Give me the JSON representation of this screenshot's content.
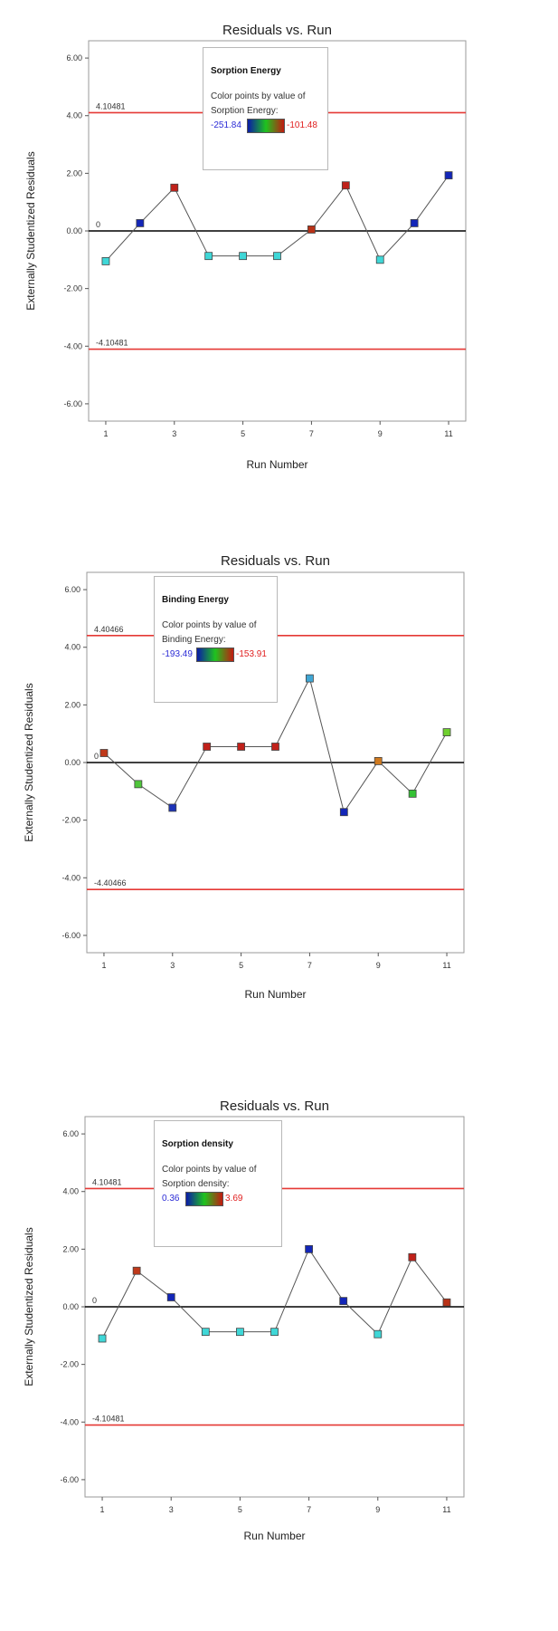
{
  "colors": {
    "limit_line": "#e53935",
    "zero_line": "#000000",
    "connect_line": "#555555",
    "legend_min": "#2b2bd6",
    "legend_max": "#e02020",
    "gradient": [
      "#0a1aa8",
      "#1fc31f",
      "#c31a10"
    ]
  },
  "chart_data": [
    {
      "type": "scatter",
      "title": "Residuals vs. Run",
      "xlabel": "Run Number",
      "ylabel": "Externally Studentized Residuals",
      "ylim": [
        -6.6,
        6.6
      ],
      "xlim": [
        0.5,
        11.5
      ],
      "yticks": [
        "6.00",
        "4.00",
        "2.00",
        "0.00",
        "-2.00",
        "-4.00",
        "-6.00"
      ],
      "xticks": [
        "1",
        "3",
        "5",
        "7",
        "9",
        "11"
      ],
      "limits": {
        "upper": 4.10481,
        "lower": -4.10481,
        "upper_label": "4.10481",
        "lower_label": "-4.10481"
      },
      "zero_label": "0",
      "legend": {
        "title": "Sorption Energy",
        "line1": "Color points by value of",
        "line2": "Sorption Energy:",
        "min": "-251.84",
        "max": "-101.48"
      },
      "x": [
        1,
        2,
        3,
        4,
        5,
        6,
        7,
        8,
        9,
        10,
        11
      ],
      "y": [
        -1.05,
        0.27,
        1.5,
        -0.87,
        -0.87,
        -0.87,
        0.05,
        1.58,
        -1.0,
        0.27,
        1.93
      ],
      "point_colors": [
        "#3fd7d7",
        "#1326b8",
        "#c0211a",
        "#3fd7d7",
        "#3fd7d7",
        "#3fd7d7",
        "#b83217",
        "#c0211a",
        "#3fd7d7",
        "#1326b8",
        "#1326b8"
      ]
    },
    {
      "type": "scatter",
      "title": "Residuals vs. Run",
      "xlabel": "Run Number",
      "ylabel": "Externally Studentized Residuals",
      "ylim": [
        -6.6,
        6.6
      ],
      "xlim": [
        0.5,
        11.5
      ],
      "yticks": [
        "6.00",
        "4.00",
        "2.00",
        "0.00",
        "-2.00",
        "-4.00",
        "-6.00"
      ],
      "xticks": [
        "1",
        "3",
        "5",
        "7",
        "9",
        "11"
      ],
      "limits": {
        "upper": 4.40466,
        "lower": -4.40466,
        "upper_label": "4.40466",
        "lower_label": "-4.40466"
      },
      "zero_label": "0",
      "legend": {
        "title": "Binding Energy",
        "line1": "Color points by value of",
        "line2": "Binding Energy:",
        "min": "-193.49",
        "max": "-153.91"
      },
      "x": [
        1,
        2,
        3,
        4,
        5,
        6,
        7,
        8,
        9,
        10,
        11
      ],
      "y": [
        0.33,
        -0.75,
        -1.57,
        0.55,
        0.55,
        0.55,
        2.92,
        -1.72,
        0.05,
        -1.08,
        1.05
      ],
      "point_colors": [
        "#c0391a",
        "#4fc63a",
        "#1c33b8",
        "#c0211a",
        "#c0211a",
        "#c0211a",
        "#3fa6d4",
        "#1326b8",
        "#d07a1f",
        "#35c235",
        "#6fd02e"
      ]
    },
    {
      "type": "scatter",
      "title": "Residuals vs. Run",
      "xlabel": "Run Number",
      "ylabel": "Externally Studentized Residuals",
      "ylim": [
        -6.6,
        6.6
      ],
      "xlim": [
        0.5,
        11.5
      ],
      "yticks": [
        "6.00",
        "4.00",
        "2.00",
        "0.00",
        "-2.00",
        "-4.00",
        "-6.00"
      ],
      "xticks": [
        "1",
        "3",
        "5",
        "7",
        "9",
        "11"
      ],
      "limits": {
        "upper": 4.10481,
        "lower": -4.10481,
        "upper_label": "4.10481",
        "lower_label": "-4.10481"
      },
      "zero_label": "0",
      "legend": {
        "title": "Sorption density",
        "line1": "Color points by value of",
        "line2": "Sorption density:",
        "min": "0.36",
        "max": "3.69"
      },
      "x": [
        1,
        2,
        3,
        4,
        5,
        6,
        7,
        8,
        9,
        10,
        11
      ],
      "y": [
        -1.1,
        1.25,
        0.33,
        -0.87,
        -0.87,
        -0.87,
        2.0,
        0.2,
        -0.95,
        1.72,
        0.15
      ],
      "point_colors": [
        "#3fd7d7",
        "#c0391a",
        "#1326b8",
        "#3fd7d7",
        "#3fd7d7",
        "#3fd7d7",
        "#1326b8",
        "#1326b8",
        "#3fd7d7",
        "#c0211a",
        "#b83217"
      ]
    }
  ]
}
